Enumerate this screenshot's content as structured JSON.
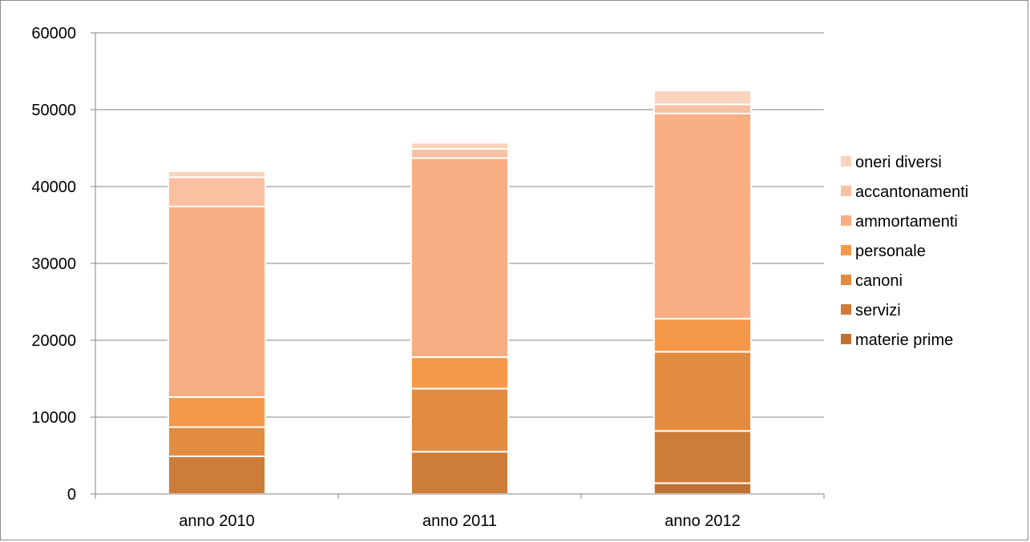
{
  "chart_data": {
    "type": "bar",
    "stacked": true,
    "title": "",
    "xlabel": "",
    "ylabel": "",
    "categories": [
      "anno 2010",
      "anno 2011",
      "anno 2012"
    ],
    "ylim": [
      0,
      60000
    ],
    "yticks": [
      "0",
      "10000",
      "20000",
      "30000",
      "40000",
      "50000",
      "60000"
    ],
    "grid": true,
    "legend_position": "right",
    "series": [
      {
        "name": "materie prime",
        "color": "#c0712f",
        "values": [
          0,
          0,
          1400
        ]
      },
      {
        "name": "servizi",
        "color": "#cd7d38",
        "values": [
          4900,
          5500,
          6800
        ]
      },
      {
        "name": "canoni",
        "color": "#e38b3f",
        "values": [
          3800,
          8200,
          10300
        ]
      },
      {
        "name": "personale",
        "color": "#f6984a",
        "values": [
          3900,
          4100,
          4300
        ]
      },
      {
        "name": "ammortamenti",
        "color": "#f8ae82",
        "values": [
          24800,
          25900,
          26700
        ]
      },
      {
        "name": "accantonamenti",
        "color": "#f9c0a2",
        "values": [
          3800,
          1200,
          1200
        ]
      },
      {
        "name": "oneri diversi",
        "color": "#fbd3bf",
        "values": [
          800,
          800,
          1800
        ]
      }
    ]
  }
}
